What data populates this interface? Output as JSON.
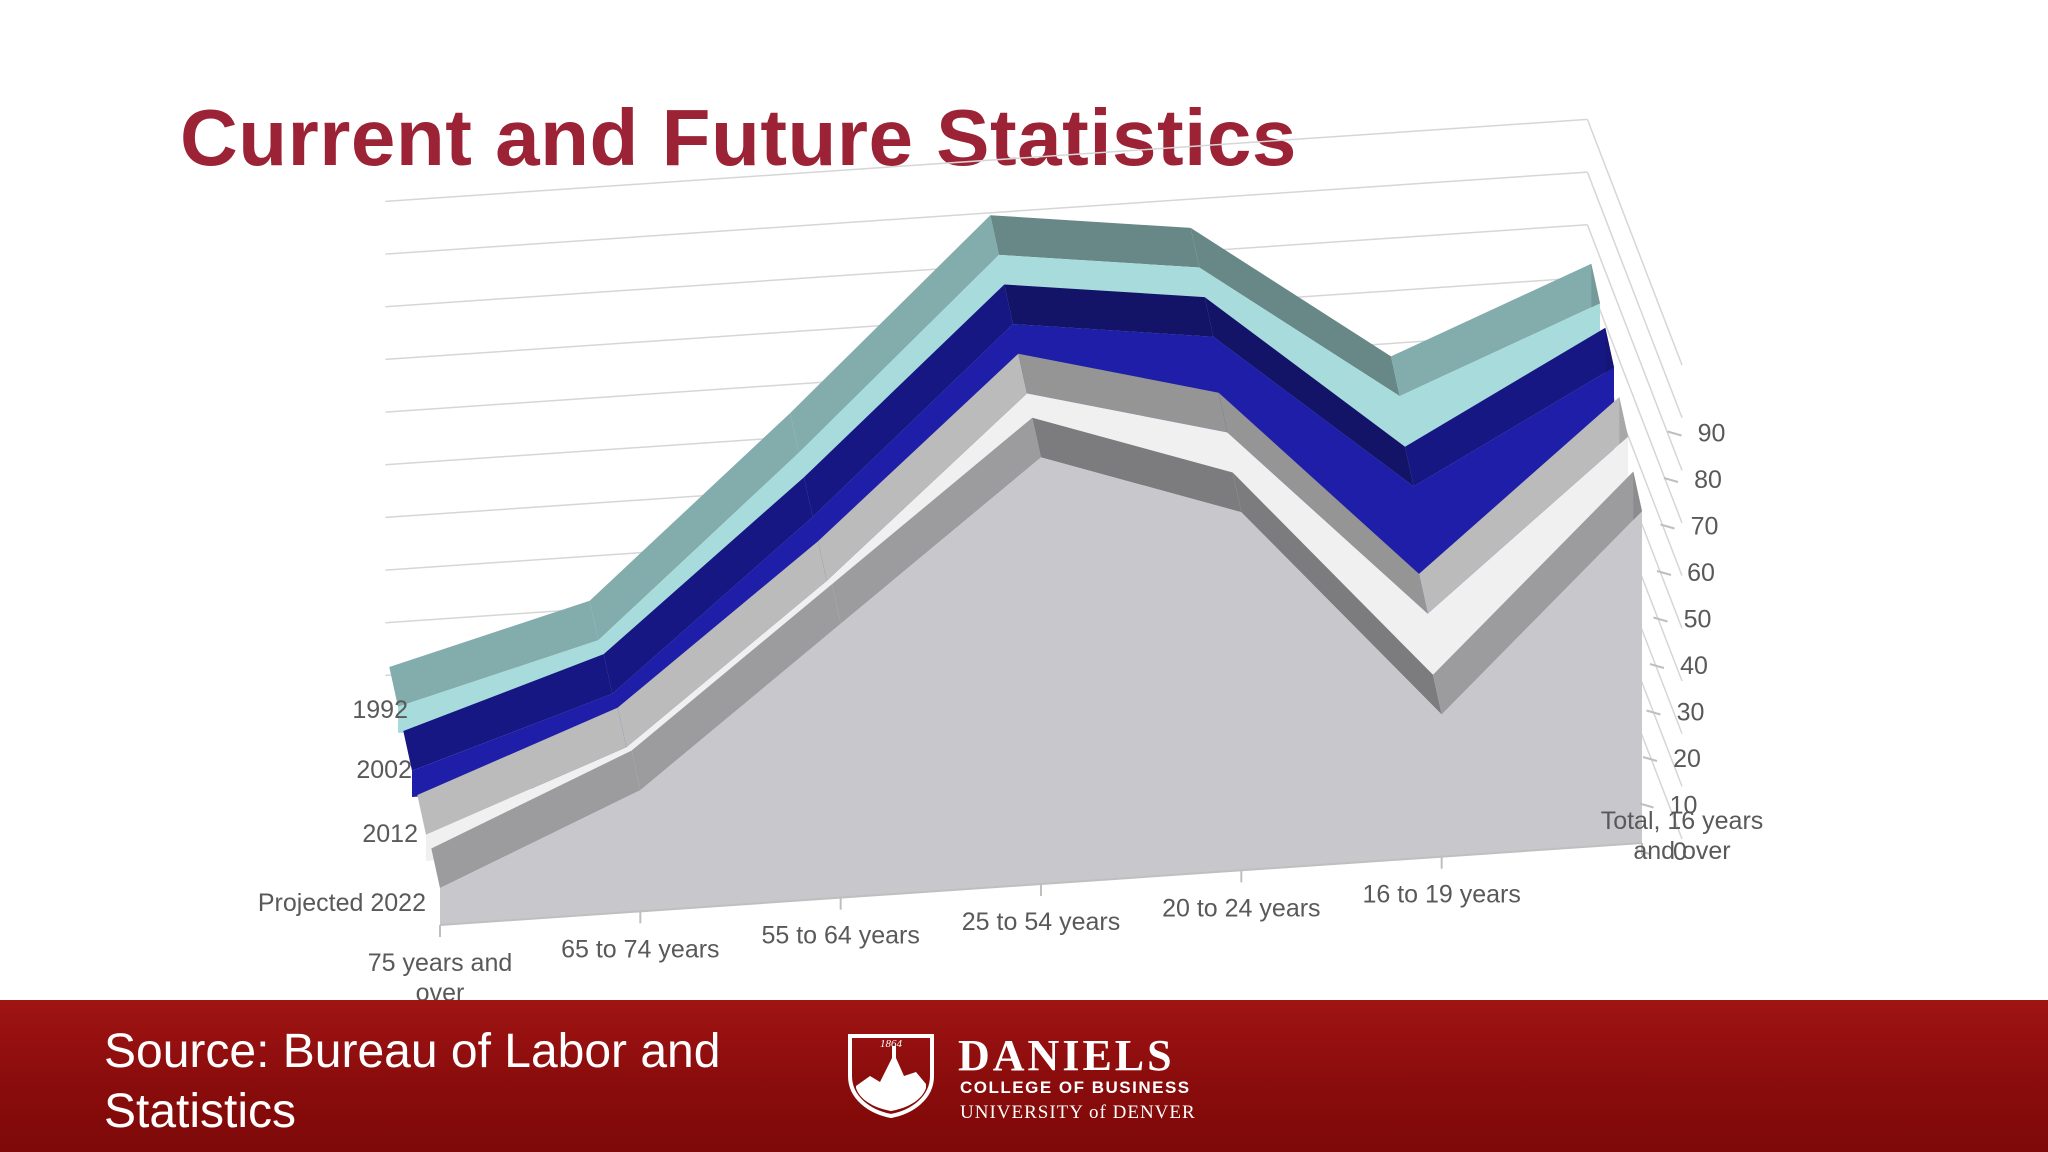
{
  "slide": {
    "title": "Current and Future Statistics",
    "source": "Source: Bureau of Labor and Statistics"
  },
  "logo": {
    "year": "1864",
    "name": "DANIELS",
    "college": "COLLEGE OF BUSINESS",
    "university": "UNIVERSITY of DENVER"
  },
  "colors": {
    "title": "#9b2335",
    "footer": "#8a0c0c",
    "series_1992": "#a8dcdc",
    "series_2002": "#1e1ea8",
    "series_2012": "#f0f0f0",
    "series_2022": "#c8c8cc"
  },
  "chart_data": {
    "type": "area",
    "three_d": true,
    "categories": [
      "75 years and over",
      "65 to 74 years",
      "55 to 64 years",
      "25 to 54 years",
      "20 to 24 years",
      "16 to 19 years",
      "Total, 16 years and over"
    ],
    "series": [
      {
        "name": "1992",
        "values": [
          5,
          15,
          48,
          83,
          78,
          51,
          66
        ]
      },
      {
        "name": "2002",
        "values": [
          5,
          17,
          48,
          82,
          77,
          46,
          66
        ]
      },
      {
        "name": "2012",
        "values": [
          5,
          19,
          48,
          81,
          71,
          34,
          65
        ]
      },
      {
        "name": "Projected 2022",
        "values": [
          7,
          23,
          52,
          81,
          68,
          27,
          63
        ]
      }
    ],
    "y_ticks": [
      0,
      10,
      20,
      30,
      40,
      50,
      60,
      70,
      80,
      90
    ],
    "ylim": [
      0,
      90
    ],
    "grid": true,
    "legend": "none"
  }
}
